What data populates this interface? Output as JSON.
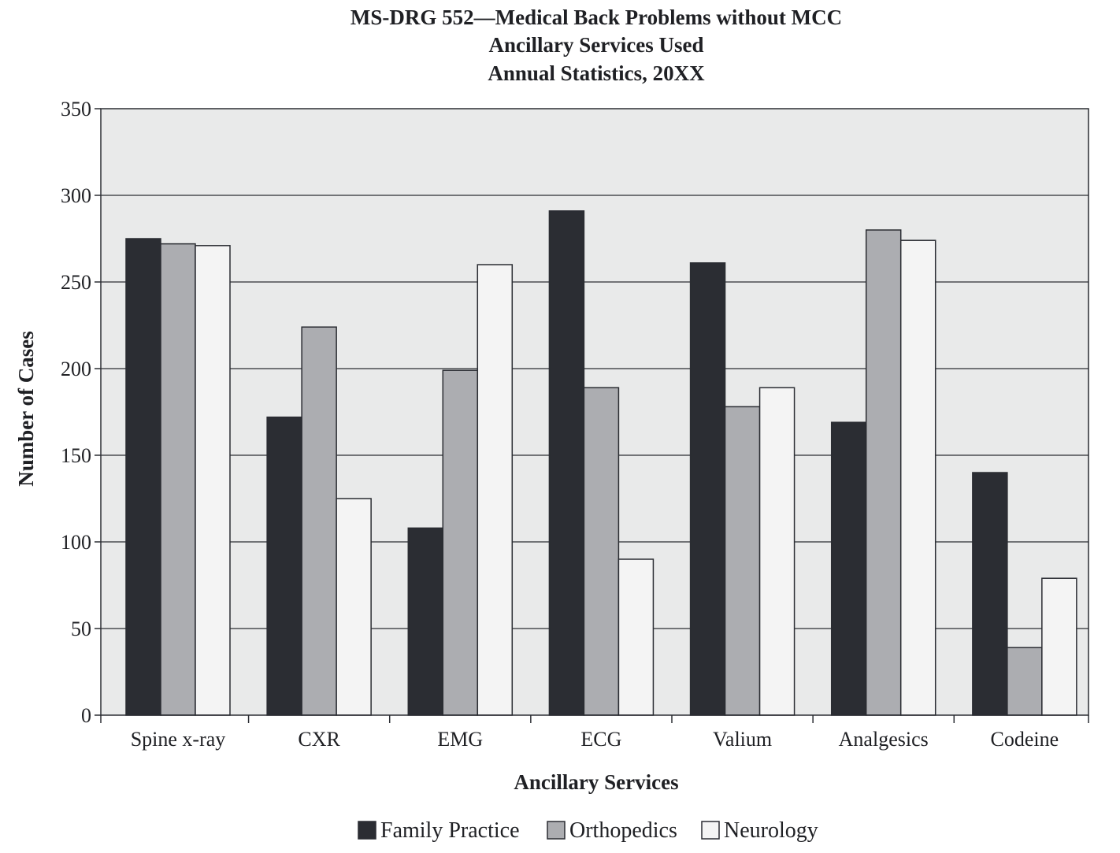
{
  "chart_data": {
    "type": "bar",
    "title_lines": [
      "MS-DRG 552—Medical Back Problems without MCC",
      "Ancillary Services Used",
      "Annual Statistics, 20XX"
    ],
    "xlabel": "Ancillary Services",
    "ylabel": "Number of Cases",
    "ylim": [
      0,
      350
    ],
    "yticks": [
      0,
      50,
      100,
      150,
      200,
      250,
      300,
      350
    ],
    "grid": true,
    "legend_position": "bottom",
    "categories": [
      "Spine x-ray",
      "CXR",
      "EMG",
      "ECG",
      "Valium",
      "Analgesics",
      "Codeine"
    ],
    "series": [
      {
        "name": "Family Practice",
        "color": "#2b2d33",
        "values": [
          275,
          172,
          108,
          291,
          261,
          169,
          140
        ]
      },
      {
        "name": "Orthopedics",
        "color": "#acadb1",
        "values": [
          272,
          224,
          199,
          189,
          178,
          280,
          39
        ]
      },
      {
        "name": "Neurology",
        "color": "#f4f4f4",
        "values": [
          271,
          125,
          260,
          90,
          189,
          274,
          79
        ]
      }
    ],
    "colors": {
      "plot_background": "#e9eaea",
      "grid": "#2b2d33",
      "frame": "#2b2d33"
    }
  }
}
